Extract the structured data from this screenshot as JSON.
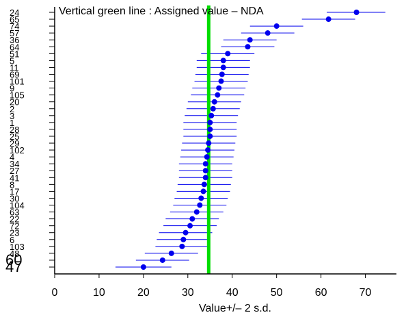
{
  "chart_data": {
    "type": "scatter",
    "title": "Vertical green line : Assigned value –  NDA",
    "xlabel": "Value+/– 2 s.d.",
    "ylabel": "",
    "xlim": [
      0,
      77
    ],
    "xticks": [
      0,
      10,
      20,
      30,
      40,
      50,
      60,
      70
    ],
    "assigned_value": 34.7,
    "grid": false,
    "colors": {
      "points": "#0000ee",
      "error_bars": "#0000ee",
      "assigned_line": "#00dd00",
      "axis": "#000000"
    },
    "points": [
      {
        "label": "24",
        "value": 68.0,
        "low": 61.3,
        "high": 74.5
      },
      {
        "label": "65",
        "value": 61.7,
        "low": 55.7,
        "high": 67.7
      },
      {
        "label": "74",
        "value": 50.0,
        "low": 44.0,
        "high": 56.0
      },
      {
        "label": "57",
        "value": 48.0,
        "low": 42.0,
        "high": 54.0
      },
      {
        "label": "36",
        "value": 44.0,
        "low": 38.0,
        "high": 50.0
      },
      {
        "label": "64",
        "value": 43.5,
        "low": 37.5,
        "high": 49.5
      },
      {
        "label": "51",
        "value": 39.0,
        "low": 33.0,
        "high": 45.0
      },
      {
        "label": "5",
        "value": 38.0,
        "low": 32.0,
        "high": 44.0
      },
      {
        "label": "11",
        "value": 38.0,
        "low": 32.0,
        "high": 44.0
      },
      {
        "label": "69",
        "value": 37.7,
        "low": 31.7,
        "high": 43.7
      },
      {
        "label": "101",
        "value": 37.5,
        "low": 31.5,
        "high": 43.5
      },
      {
        "label": "9",
        "value": 37.0,
        "low": 31.0,
        "high": 43.0
      },
      {
        "label": "105",
        "value": 36.7,
        "low": 30.7,
        "high": 42.7
      },
      {
        "label": "20",
        "value": 36.0,
        "low": 30.0,
        "high": 42.0
      },
      {
        "label": "2",
        "value": 35.7,
        "low": 29.7,
        "high": 41.7
      },
      {
        "label": "3",
        "value": 35.3,
        "low": 29.3,
        "high": 41.3
      },
      {
        "label": "1",
        "value": 35.0,
        "low": 29.0,
        "high": 41.0
      },
      {
        "label": "28",
        "value": 35.0,
        "low": 29.0,
        "high": 41.0
      },
      {
        "label": "25",
        "value": 35.0,
        "low": 29.0,
        "high": 41.0
      },
      {
        "label": "29",
        "value": 34.7,
        "low": 28.7,
        "high": 40.7
      },
      {
        "label": "102",
        "value": 34.5,
        "low": 28.5,
        "high": 40.5
      },
      {
        "label": "4",
        "value": 34.3,
        "low": 28.3,
        "high": 40.3
      },
      {
        "label": "34",
        "value": 34.0,
        "low": 28.0,
        "high": 40.0
      },
      {
        "label": "27",
        "value": 34.0,
        "low": 28.0,
        "high": 40.0
      },
      {
        "label": "41",
        "value": 34.0,
        "low": 28.0,
        "high": 40.0
      },
      {
        "label": "8",
        "value": 33.7,
        "low": 27.7,
        "high": 39.7
      },
      {
        "label": "17",
        "value": 33.5,
        "low": 27.5,
        "high": 39.5
      },
      {
        "label": "30",
        "value": 33.0,
        "low": 27.0,
        "high": 39.0
      },
      {
        "label": "104",
        "value": 32.7,
        "low": 26.7,
        "high": 38.7
      },
      {
        "label": "63",
        "value": 32.0,
        "low": 26.0,
        "high": 38.0
      },
      {
        "label": "22",
        "value": 31.0,
        "low": 25.0,
        "high": 37.0
      },
      {
        "label": "72",
        "value": 30.5,
        "low": 24.5,
        "high": 36.5
      },
      {
        "label": "23",
        "value": 29.5,
        "low": 23.5,
        "high": 35.5
      },
      {
        "label": "6",
        "value": 29.0,
        "low": 23.0,
        "high": 35.0
      },
      {
        "label": "103",
        "value": 28.7,
        "low": 22.7,
        "high": 34.7
      },
      {
        "label": "48",
        "value": 26.3,
        "low": 20.3,
        "high": 32.3
      },
      {
        "label": "60",
        "value": 24.3,
        "low": 18.3,
        "high": 30.3
      },
      {
        "label": "47",
        "value": 20.0,
        "low": 13.7,
        "high": 26.3
      }
    ]
  }
}
